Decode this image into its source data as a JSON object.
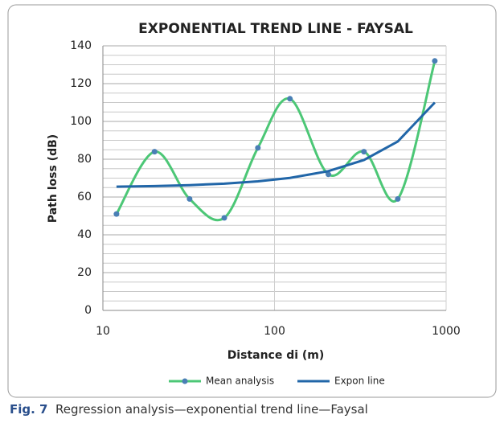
{
  "chart_data": {
    "type": "line",
    "title": "EXPONENTIAL TREND LINE - FAYSAL",
    "x_label": "Distance di (m)",
    "y_label": "Path loss (dB)",
    "x": [
      12,
      20,
      32,
      51,
      80,
      123,
      206,
      332,
      523,
      859
    ],
    "series": [
      {
        "name": "Mean analysis",
        "color": "#4cc776",
        "marker_color": "#4a7fb5",
        "smooth": true,
        "values": [
          51,
          84,
          59,
          49,
          86,
          112,
          72,
          84,
          59,
          132
        ]
      },
      {
        "name": "Expon line",
        "color": "#2166a8",
        "values": [
          65.5,
          65.8,
          66.3,
          67.1,
          68.3,
          70.1,
          73.7,
          79.6,
          89.4,
          110
        ]
      }
    ],
    "xlim": [
      10,
      1000
    ],
    "xticks": [
      10,
      100,
      1000
    ],
    "xscale": "log",
    "ylim": [
      0,
      140
    ],
    "yticks": [
      0,
      20,
      40,
      60,
      80,
      100,
      120,
      140
    ],
    "yminor": 5,
    "grid": true,
    "legend": "bottom"
  },
  "caption": {
    "label": "Fig. 7",
    "text": "Regression analysis—exponential trend line—Faysal"
  }
}
